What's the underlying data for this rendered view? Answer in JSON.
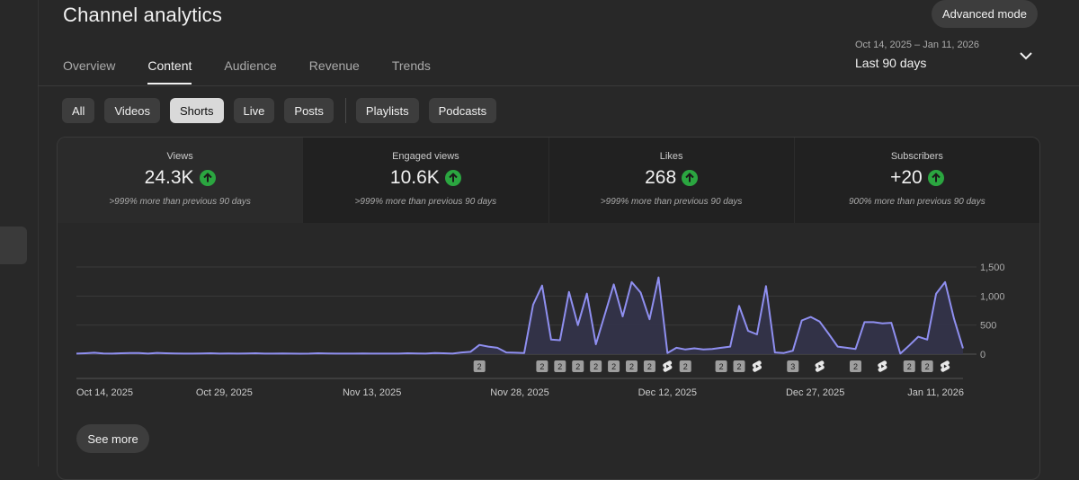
{
  "header": {
    "title": "Channel analytics",
    "advanced_mode_label": "Advanced mode"
  },
  "tabs": [
    {
      "label": "Overview",
      "active": false
    },
    {
      "label": "Content",
      "active": true
    },
    {
      "label": "Audience",
      "active": false
    },
    {
      "label": "Revenue",
      "active": false
    },
    {
      "label": "Trends",
      "active": false
    }
  ],
  "date_range": {
    "dates": "Oct 14, 2025 – Jan 11, 2026",
    "label": "Last 90 days"
  },
  "filters": {
    "group1": [
      {
        "label": "All",
        "active": false
      },
      {
        "label": "Videos",
        "active": false
      },
      {
        "label": "Shorts",
        "active": true
      },
      {
        "label": "Live",
        "active": false
      },
      {
        "label": "Posts",
        "active": false
      }
    ],
    "group2": [
      {
        "label": "Playlists",
        "active": false
      },
      {
        "label": "Podcasts",
        "active": false
      }
    ]
  },
  "metrics": [
    {
      "label": "Views",
      "value": "24.3K",
      "change": ">999% more than previous 90 days",
      "active": true
    },
    {
      "label": "Engaged views",
      "value": "10.6K",
      "change": ">999% more than previous 90 days",
      "active": false
    },
    {
      "label": "Likes",
      "value": "268",
      "change": ">999% more than previous 90 days",
      "active": false
    },
    {
      "label": "Subscribers",
      "value": "+20",
      "change": "900% more than previous 90 days",
      "active": false
    }
  ],
  "colors": {
    "line": "#8f8ff0",
    "area": "#33334a",
    "up_badge": "#2ba640"
  },
  "chart_data": {
    "type": "area",
    "x_start": "Oct 14, 2025",
    "x_end": "Jan 11, 2026",
    "x_tick_labels": [
      "Oct 14, 2025",
      "Oct 29, 2025",
      "Nov 13, 2025",
      "Nov 28, 2025",
      "Dec 12, 2025",
      "Dec 27, 2025",
      "Jan 11, 2026"
    ],
    "y_tick_labels": [
      "1,500",
      "1,000",
      "500",
      "0"
    ],
    "ylim": [
      0,
      1500
    ],
    "values": [
      10,
      15,
      25,
      12,
      10,
      15,
      20,
      18,
      10,
      22,
      15,
      12,
      10,
      10,
      12,
      15,
      10,
      12,
      10,
      12,
      15,
      10,
      10,
      12,
      10,
      8,
      10,
      15,
      12,
      10,
      10,
      10,
      12,
      10,
      10,
      10,
      10,
      15,
      12,
      10,
      20,
      15,
      10,
      30,
      40,
      160,
      130,
      110,
      30,
      25,
      20,
      850,
      1180,
      250,
      240,
      1070,
      500,
      1040,
      170,
      680,
      1200,
      650,
      1240,
      1060,
      600,
      1320,
      20,
      110,
      80,
      100,
      80,
      90,
      110,
      130,
      830,
      400,
      340,
      1170,
      30,
      20,
      60,
      580,
      640,
      560,
      350,
      130,
      110,
      90,
      550,
      550,
      530,
      540,
      10,
      150,
      300,
      250,
      1040,
      1240,
      610,
      100
    ],
    "annotations": [
      {
        "day": 45,
        "type": "count",
        "label": "2"
      },
      {
        "day": 52,
        "type": "count",
        "label": "2"
      },
      {
        "day": 54,
        "type": "count",
        "label": "2"
      },
      {
        "day": 56,
        "type": "count",
        "label": "2"
      },
      {
        "day": 58,
        "type": "count",
        "label": "2"
      },
      {
        "day": 60,
        "type": "count",
        "label": "2"
      },
      {
        "day": 62,
        "type": "count",
        "label": "2"
      },
      {
        "day": 64,
        "type": "count",
        "label": "2"
      },
      {
        "day": 66,
        "type": "shorts"
      },
      {
        "day": 68,
        "type": "count",
        "label": "2"
      },
      {
        "day": 72,
        "type": "count",
        "label": "2"
      },
      {
        "day": 74,
        "type": "count",
        "label": "2"
      },
      {
        "day": 76,
        "type": "shorts"
      },
      {
        "day": 80,
        "type": "count",
        "label": "3"
      },
      {
        "day": 83,
        "type": "shorts"
      },
      {
        "day": 87,
        "type": "count",
        "label": "2"
      },
      {
        "day": 90,
        "type": "shorts"
      },
      {
        "day": 93,
        "type": "count",
        "label": "2"
      },
      {
        "day": 95,
        "type": "count",
        "label": "2"
      },
      {
        "day": 97,
        "type": "shorts"
      }
    ]
  },
  "see_more_label": "See more"
}
